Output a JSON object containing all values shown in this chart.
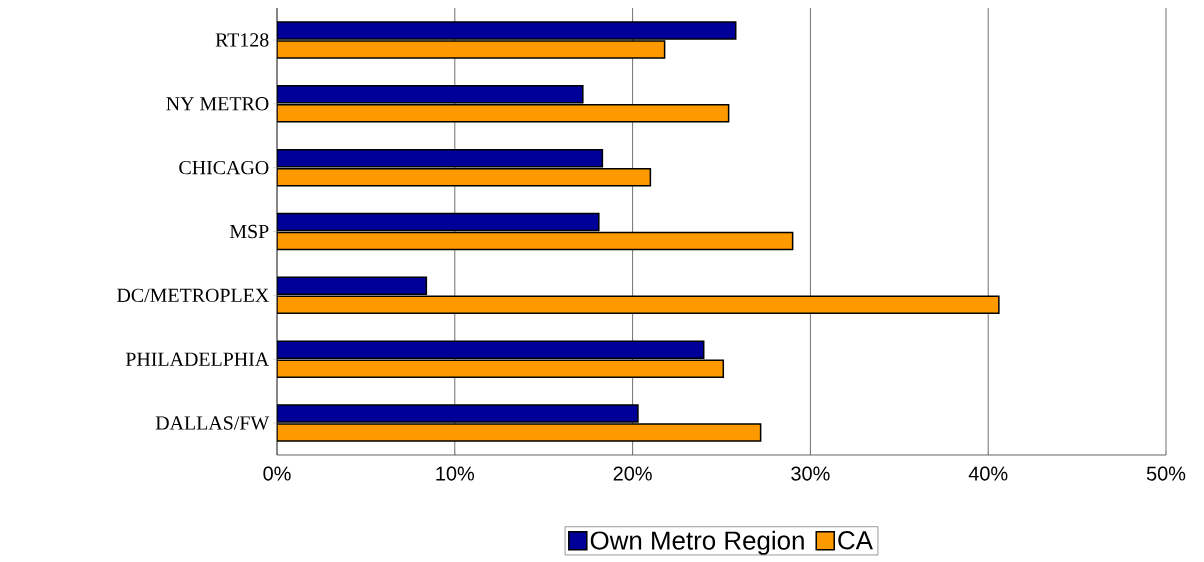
{
  "chart_data": {
    "type": "bar",
    "orientation": "horizontal",
    "categories": [
      "RT128",
      "NY METRO",
      "CHICAGO",
      "MSP",
      "DC/METROPLEX",
      "PHILADELPHIA",
      "DALLAS/FW"
    ],
    "series": [
      {
        "name": "Own Metro Region",
        "color": "#000099",
        "values": [
          25.8,
          17.2,
          18.3,
          18.1,
          8.4,
          24.0,
          20.3
        ]
      },
      {
        "name": "CA",
        "color": "#ff9900",
        "values": [
          21.8,
          25.4,
          21.0,
          29.0,
          40.6,
          25.1,
          27.2
        ]
      }
    ],
    "xlim": [
      0,
      50
    ],
    "xticks": [
      {
        "value": 0,
        "label": "0%"
      },
      {
        "value": 10,
        "label": "10%"
      },
      {
        "value": 20,
        "label": "20%"
      },
      {
        "value": 30,
        "label": "30%"
      },
      {
        "value": 40,
        "label": "40%"
      },
      {
        "value": 50,
        "label": "50%"
      }
    ],
    "grid": "x",
    "legend": "bottom"
  }
}
